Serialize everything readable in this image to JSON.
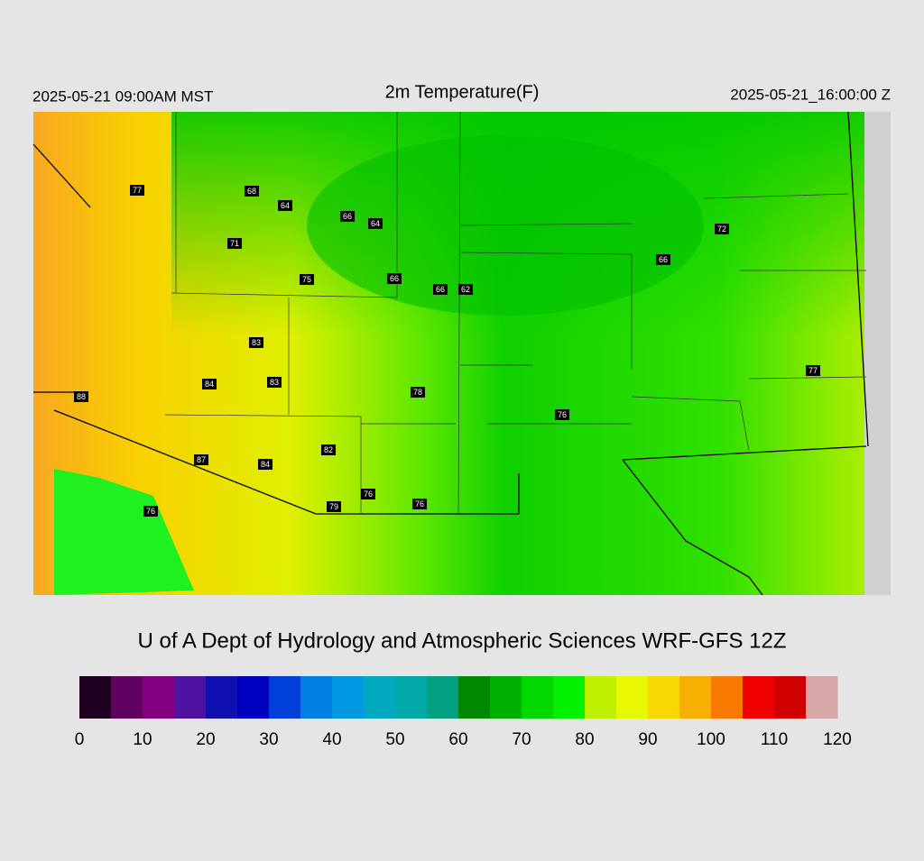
{
  "header": {
    "left": "2025-05-21 09:00AM MST",
    "title": "2m Temperature(F)",
    "right": "2025-05-21_16:00:00 Z"
  },
  "map": {
    "stations": [
      {
        "value": 77
      },
      {
        "value": 68
      },
      {
        "value": 64
      },
      {
        "value": 66
      },
      {
        "value": 64
      },
      {
        "value": 71
      },
      {
        "value": 75
      },
      {
        "value": 66
      },
      {
        "value": 66
      },
      {
        "value": 62
      },
      {
        "value": 72
      },
      {
        "value": 66
      },
      {
        "value": 83
      },
      {
        "value": 84
      },
      {
        "value": 83
      },
      {
        "value": 88
      },
      {
        "value": 78
      },
      {
        "value": 76
      },
      {
        "value": 77
      },
      {
        "value": 82
      },
      {
        "value": 87
      },
      {
        "value": 84
      },
      {
        "value": 76
      },
      {
        "value": 79
      },
      {
        "value": 76
      },
      {
        "value": 76
      }
    ]
  },
  "footer": {
    "credit": "U of A Dept of Hydrology and Atmospheric Sciences WRF-GFS 12Z"
  },
  "colorbar": {
    "lim": [
      0,
      120
    ],
    "ticks": [
      0,
      10,
      20,
      30,
      40,
      50,
      60,
      70,
      80,
      90,
      100,
      110,
      120
    ],
    "colors": [
      "#200020",
      "#600060",
      "#800080",
      "#5010a0",
      "#1010b0",
      "#0000c0",
      "#0040d8",
      "#0080e0",
      "#0098e0",
      "#00a8c0",
      "#00a8a8",
      "#00a080",
      "#008800",
      "#00b000",
      "#00d800",
      "#00f000",
      "#c0f000",
      "#e8f800",
      "#f8d800",
      "#f8b000",
      "#f87800",
      "#f00000",
      "#d00000",
      "#d8a8a8"
    ]
  }
}
